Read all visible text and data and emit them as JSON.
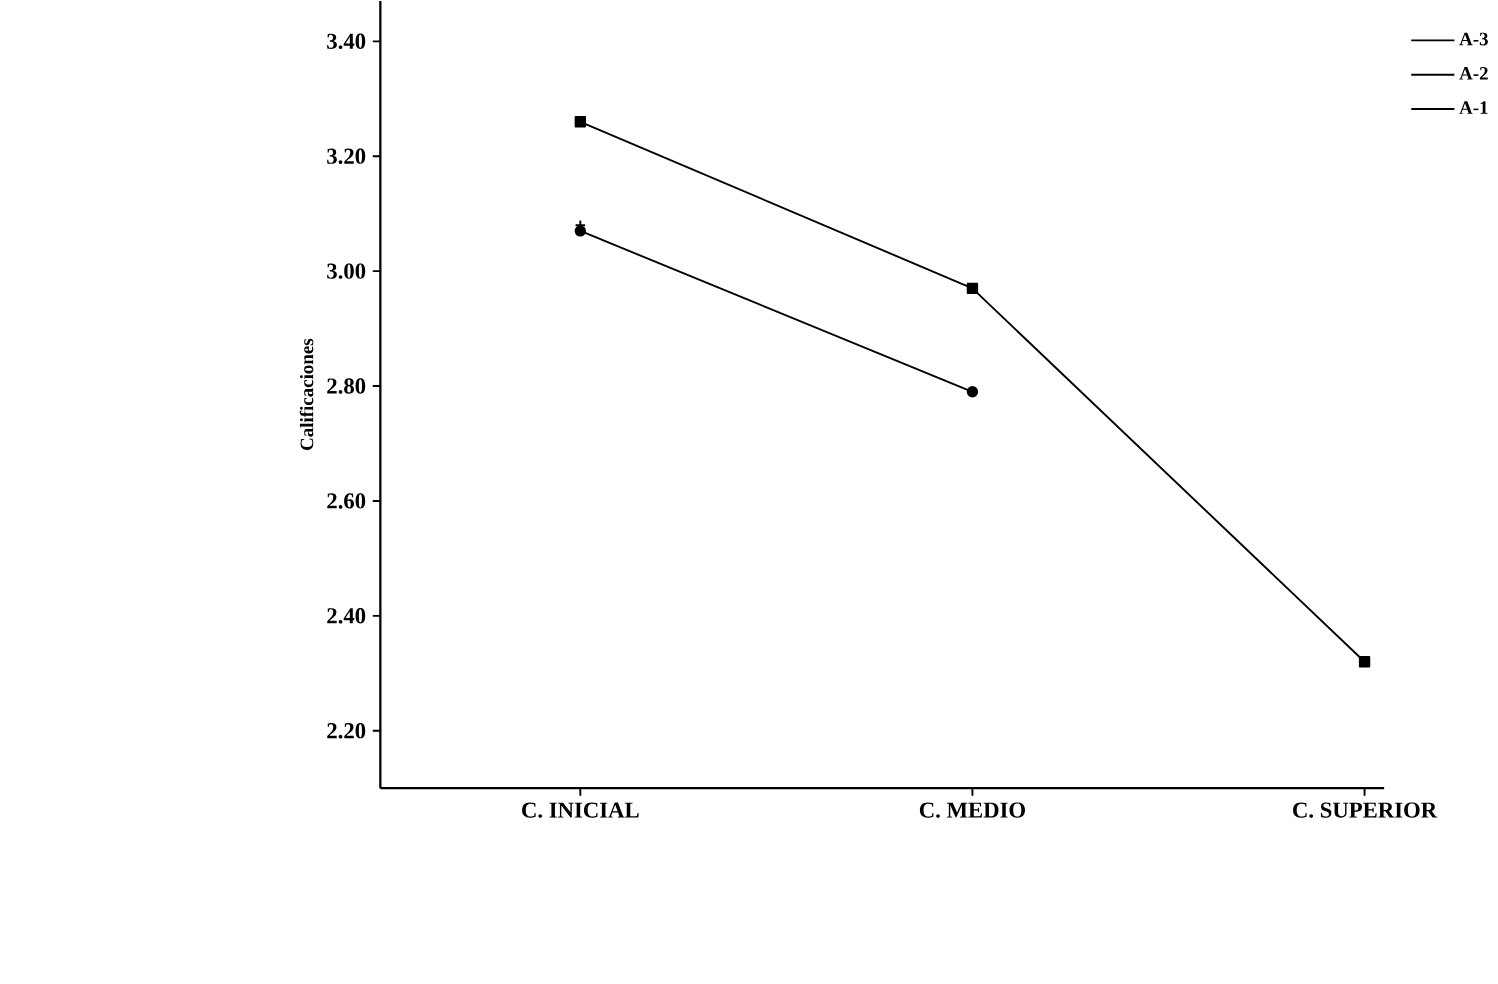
{
  "chart_data": {
    "type": "line",
    "ylabel": "Calificaciones",
    "categories": [
      "C. INICIAL",
      "C. MEDIO",
      "C. SUPERIOR"
    ],
    "series": [
      {
        "name": "A-3",
        "color": "#000000",
        "marker": "square",
        "values": [
          3.26,
          2.97,
          2.32
        ]
      },
      {
        "name": "A-2",
        "color": "#000000",
        "marker": "cross",
        "values": [
          3.08,
          null,
          null
        ]
      },
      {
        "name": "A-1",
        "color": "#000000",
        "marker": "circle",
        "values": [
          3.07,
          2.79,
          null
        ]
      }
    ],
    "ylim": [
      2.1,
      3.47
    ],
    "yticks": [
      {
        "value": 2.2,
        "label": "2.20"
      },
      {
        "value": 2.4,
        "label": "2.40"
      },
      {
        "value": 2.6,
        "label": "2.60"
      },
      {
        "value": 2.8,
        "label": "2.80"
      },
      {
        "value": 3.0,
        "label": "3.00"
      },
      {
        "value": 3.2,
        "label": "3.20"
      },
      {
        "value": 3.4,
        "label": "3.40"
      }
    ],
    "legend": "top right",
    "grid": false,
    "line_style": "solid"
  }
}
